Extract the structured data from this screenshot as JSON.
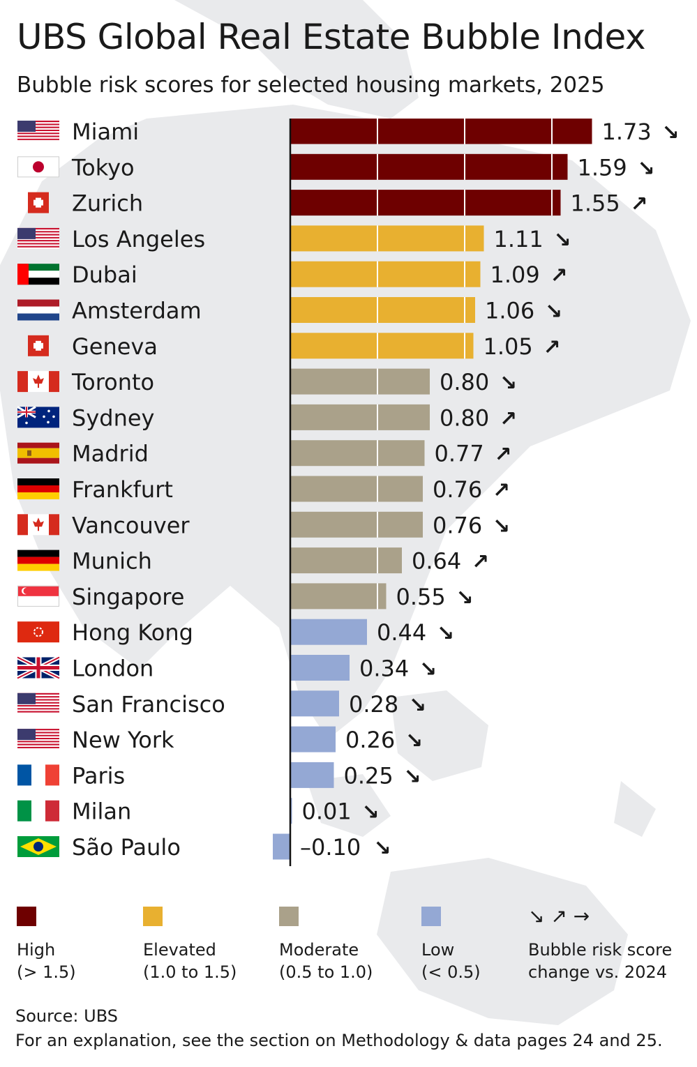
{
  "title": "UBS Global Real Estate Bubble Index",
  "subtitle": "Bubble risk scores for selected housing markets, 2025",
  "colors": {
    "high": "#6e0000",
    "elevated": "#e8b030",
    "moderate": "#aaa18a",
    "low": "#94a8d4",
    "map": "#e9eaec",
    "axis": "#111111"
  },
  "chart_data": {
    "type": "bar",
    "orientation": "horizontal",
    "title": "UBS Global Real Estate Bubble Index",
    "subtitle": "Bubble risk scores for selected housing markets, 2025",
    "xlim": [
      -0.25,
      1.85
    ],
    "grid": false,
    "categories": [
      "Miami",
      "Tokyo",
      "Zurich",
      "Los Angeles",
      "Dubai",
      "Amsterdam",
      "Geneva",
      "Toronto",
      "Sydney",
      "Madrid",
      "Frankfurt",
      "Vancouver",
      "Munich",
      "Singapore",
      "Hong Kong",
      "London",
      "San Francisco",
      "New York",
      "Paris",
      "Milan",
      "São Paulo"
    ],
    "values": [
      1.73,
      1.59,
      1.55,
      1.11,
      1.09,
      1.06,
      1.05,
      0.8,
      0.8,
      0.77,
      0.76,
      0.76,
      0.64,
      0.55,
      0.44,
      0.34,
      0.28,
      0.26,
      0.25,
      0.01,
      -0.1
    ],
    "value_labels": [
      "1.73",
      "1.59",
      "1.55",
      "1.11",
      "1.09",
      "1.06",
      "1.05",
      "0.80",
      "0.80",
      "0.77",
      "0.76",
      "0.76",
      "0.64",
      "0.55",
      "0.44",
      "0.34",
      "0.28",
      "0.26",
      "0.25",
      "0.01",
      "–0.10"
    ],
    "risk": [
      "high",
      "high",
      "high",
      "elevated",
      "elevated",
      "elevated",
      "elevated",
      "moderate",
      "moderate",
      "moderate",
      "moderate",
      "moderate",
      "moderate",
      "moderate",
      "low",
      "low",
      "low",
      "low",
      "low",
      "low",
      "low"
    ],
    "trend": [
      "down",
      "down",
      "up",
      "down",
      "up",
      "down",
      "up",
      "down",
      "up",
      "up",
      "up",
      "down",
      "up",
      "down",
      "down",
      "down",
      "down",
      "down",
      "down",
      "down",
      "down"
    ],
    "flags": [
      "us-flag-icon",
      "japan-flag-icon",
      "switzerland-flag-icon",
      "us-flag-icon",
      "uae-flag-icon",
      "netherlands-flag-icon",
      "switzerland-flag-icon",
      "canada-flag-icon",
      "australia-flag-icon",
      "spain-flag-icon",
      "germany-flag-icon",
      "canada-flag-icon",
      "germany-flag-icon",
      "singapore-flag-icon",
      "hong-kong-flag-icon",
      "uk-flag-icon",
      "us-flag-icon",
      "us-flag-icon",
      "france-flag-icon",
      "italy-flag-icon",
      "brazil-flag-icon"
    ],
    "legend_placement": "bottom"
  },
  "arrows": {
    "down": "↘",
    "up": "↗",
    "right": "→"
  },
  "legend": {
    "high": {
      "line1": "High",
      "line2": "(> 1.5)"
    },
    "elevated": {
      "line1": "Elevated",
      "line2": "(1.0 to 1.5)"
    },
    "moderate": {
      "line1": "Moderate",
      "line2": "(0.5 to 1.0)"
    },
    "low": {
      "line1": "Low",
      "line2": "(< 0.5)"
    },
    "trend_arrows": "↘ ↗ →",
    "trend_line1": "Bubble risk score",
    "trend_line2": "change vs. 2024"
  },
  "source": {
    "line1": "Source: UBS",
    "line2": "For an explanation, see the section on Methodology & data pages 24 and 25."
  }
}
